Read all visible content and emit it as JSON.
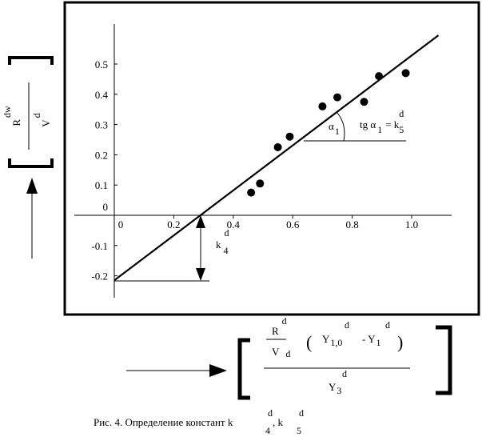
{
  "chart_data": {
    "type": "scatter",
    "title": "",
    "xlim": [
      0,
      1.1
    ],
    "ylim": [
      -0.22,
      0.62
    ],
    "x_ticks": [
      {
        "value": 0.2,
        "label": "0.2"
      },
      {
        "value": 0.4,
        "label": "0.4"
      },
      {
        "value": 0.6,
        "label": "0.6"
      },
      {
        "value": 0.8,
        "label": "0.8"
      },
      {
        "value": 1.0,
        "label": "1.0"
      }
    ],
    "x_origin_label": "0",
    "y_ticks": [
      {
        "value": 0.5,
        "label": "0.5"
      },
      {
        "value": 0.4,
        "label": "0.4"
      },
      {
        "value": 0.3,
        "label": "0.3"
      },
      {
        "value": 0.2,
        "label": "0.2"
      },
      {
        "value": 0.1,
        "label": "0.1"
      },
      {
        "value": 0.0,
        "label": "0"
      },
      {
        "value": -0.1,
        "label": "-0.1"
      },
      {
        "value": -0.2,
        "label": "-0.2"
      }
    ],
    "points": [
      {
        "x": 0.46,
        "y": 0.075
      },
      {
        "x": 0.49,
        "y": 0.105
      },
      {
        "x": 0.55,
        "y": 0.225
      },
      {
        "x": 0.59,
        "y": 0.26
      },
      {
        "x": 0.7,
        "y": 0.36
      },
      {
        "x": 0.75,
        "y": 0.39
      },
      {
        "x": 0.84,
        "y": 0.375
      },
      {
        "x": 0.89,
        "y": 0.46
      },
      {
        "x": 0.98,
        "y": 0.47
      }
    ],
    "fit_line": {
      "x": [
        0,
        1.09
      ],
      "y": [
        -0.215,
        0.595
      ]
    },
    "x_intercept": 0.29,
    "angle_label": {
      "base": "α",
      "sub": "1"
    },
    "slope_label": {
      "text": "tg α",
      "sub": "1",
      "eq": "= k",
      "sup": "d",
      "sub2": "5"
    },
    "intercept_label": {
      "base": "k",
      "sup": "d",
      "sub": "4"
    },
    "y_axis_label": {
      "num": "R",
      "num_sup": "dw",
      "den": "V",
      "den_sup": "d"
    },
    "x_axis_label": {
      "frac_num": "R",
      "frac_num_sup": "d",
      "frac_den": "V",
      "frac_den_sup": "d",
      "paren_open": "(",
      "paren_close": ")",
      "y10": "Y",
      "y10_sub": "1,0",
      "y10_sup": "d",
      "minus": "- Y",
      "y1_sub": "1",
      "y1_sup": "d",
      "den": "Y",
      "den_sub": "3",
      "den_sup": "d"
    }
  },
  "caption": {
    "text": "Рис. 4.  Определение констант  k",
    "k4_sup": "d",
    "k4_sub": "4",
    "sep": ",  k",
    "k5_sup": "d",
    "k5_sub": "5"
  }
}
